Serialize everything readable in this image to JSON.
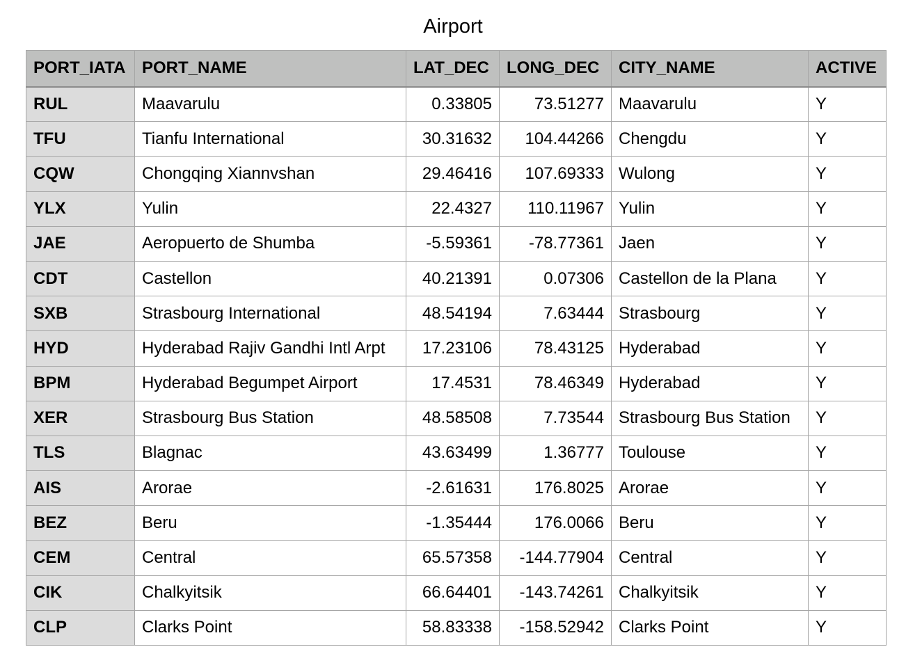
{
  "title": "Airport",
  "columns": [
    "PORT_IATA",
    "PORT_NAME",
    "LAT_DEC",
    "LONG_DEC",
    "CITY_NAME",
    "ACTIVE"
  ],
  "rows": [
    [
      "RUL",
      "Maavarulu",
      "0.33805",
      "73.51277",
      "Maavarulu",
      "Y"
    ],
    [
      "TFU",
      "Tianfu International",
      "30.31632",
      "104.44266",
      "Chengdu",
      "Y"
    ],
    [
      "CQW",
      "Chongqing Xiannvshan",
      "29.46416",
      "107.69333",
      "Wulong",
      "Y"
    ],
    [
      "YLX",
      "Yulin",
      "22.4327",
      "110.11967",
      "Yulin",
      "Y"
    ],
    [
      "JAE",
      "Aeropuerto de Shumba",
      "-5.59361",
      "-78.77361",
      "Jaen",
      "Y"
    ],
    [
      "CDT",
      "Castellon",
      "40.21391",
      "0.07306",
      "Castellon de la Plana",
      "Y"
    ],
    [
      "SXB",
      "Strasbourg International",
      "48.54194",
      "7.63444",
      "Strasbourg",
      "Y"
    ],
    [
      "HYD",
      "Hyderabad Rajiv Gandhi Intl Arpt",
      "17.23106",
      "78.43125",
      "Hyderabad",
      "Y"
    ],
    [
      "BPM",
      "Hyderabad Begumpet Airport",
      "17.4531",
      "78.46349",
      "Hyderabad",
      "Y"
    ],
    [
      "XER",
      "Strasbourg Bus Station",
      "48.58508",
      "7.73544",
      "Strasbourg Bus Station",
      "Y"
    ],
    [
      "TLS",
      "Blagnac",
      "43.63499",
      "1.36777",
      "Toulouse",
      "Y"
    ],
    [
      "AIS",
      "Arorae",
      "-2.61631",
      "176.8025",
      "Arorae",
      "Y"
    ],
    [
      "BEZ",
      "Beru",
      "-1.35444",
      "176.0066",
      "Beru",
      "Y"
    ],
    [
      "CEM",
      "Central",
      "65.57358",
      "-144.77904",
      "Central",
      "Y"
    ],
    [
      "CIK",
      "Chalkyitsik",
      "66.64401",
      "-143.74261",
      "Chalkyitsik",
      "Y"
    ],
    [
      "CLP",
      "Clarks Point",
      "58.83338",
      "-158.52942",
      "Clarks Point",
      "Y"
    ]
  ]
}
